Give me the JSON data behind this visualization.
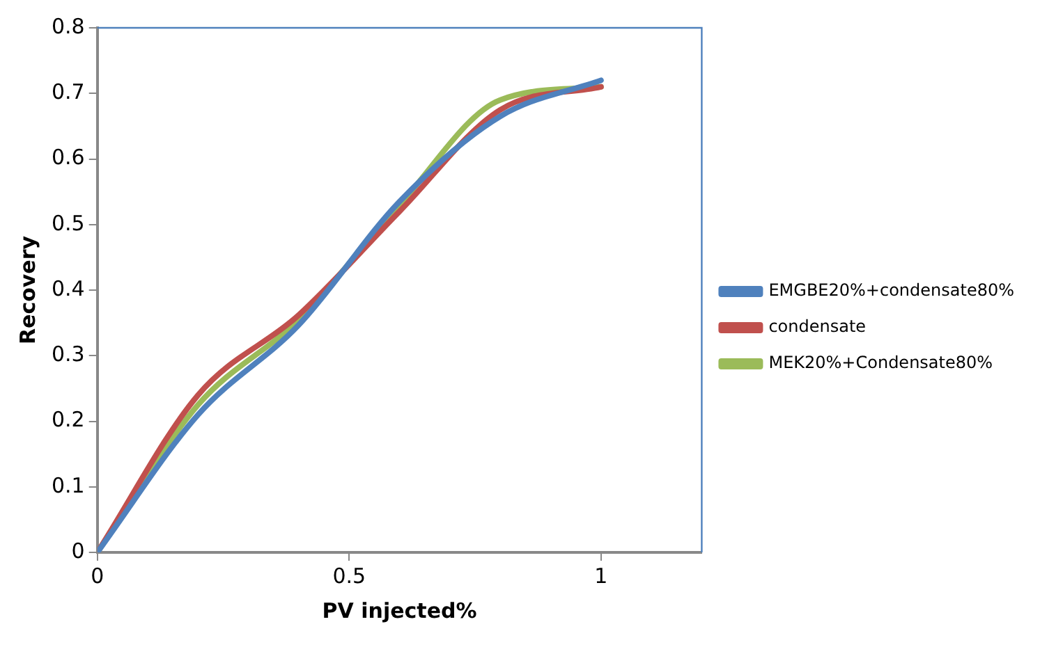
{
  "chart_data": {
    "type": "line",
    "xlabel": "PV injected%",
    "ylabel": "Recovery",
    "xlim": [
      0,
      1.2
    ],
    "xticks": [
      0,
      0.5,
      1
    ],
    "ylim": [
      0,
      0.8
    ],
    "yticks": [
      0,
      0.1,
      0.2,
      0.3,
      0.4,
      0.5,
      0.6,
      0.7,
      0.8
    ],
    "x": [
      0,
      0.2,
      0.4,
      0.6,
      0.8,
      1.0
    ],
    "series": [
      {
        "name": "EMGBE20%+condensate80%",
        "color": "#4f81bd",
        "values": [
          0,
          0.21,
          0.347,
          0.535,
          0.665,
          0.72
        ]
      },
      {
        "name": "condensate",
        "color": "#c0504d",
        "values": [
          0,
          0.24,
          0.362,
          0.52,
          0.675,
          0.71
        ]
      },
      {
        "name": "MEK20%+Condensate80%",
        "color": "#9bbb59",
        "values": [
          0,
          0.225,
          0.355,
          0.53,
          0.69,
          0.71
        ]
      }
    ],
    "grid": false,
    "legend": "right",
    "marker": "none",
    "line_style": "solid"
  }
}
